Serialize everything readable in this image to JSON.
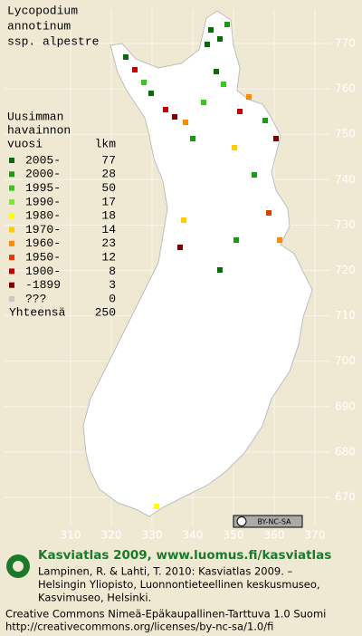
{
  "title_lines": [
    "Lycopodium",
    "annotinum",
    "ssp. alpestre"
  ],
  "map": {
    "xticks": [
      310,
      320,
      330,
      340,
      350,
      360,
      370
    ],
    "yticks": [
      670,
      680,
      690,
      700,
      710,
      720,
      730,
      740,
      750,
      760,
      770
    ]
  },
  "legend": {
    "title_lines": [
      "Uusimman",
      "havainnon",
      "vuosi"
    ],
    "count_header": "lkm",
    "items": [
      {
        "label": "2005-",
        "count": 77,
        "color": "#0a6a0a"
      },
      {
        "label": "2000-",
        "count": 28,
        "color": "#1c9a14"
      },
      {
        "label": "1995-",
        "count": 50,
        "color": "#34c81c"
      },
      {
        "label": "1990-",
        "count": 17,
        "color": "#7ee83a"
      },
      {
        "label": "1980-",
        "count": 18,
        "color": "#ffff00"
      },
      {
        "label": "1970-",
        "count": 14,
        "color": "#ffcc00"
      },
      {
        "label": "1960-",
        "count": 23,
        "color": "#ff8a00"
      },
      {
        "label": "1950-",
        "count": 12,
        "color": "#e83a00"
      },
      {
        "label": "1900-",
        "count": 8,
        "color": "#c00000"
      },
      {
        "label": "-1899",
        "count": 3,
        "color": "#800000"
      },
      {
        "label": "???",
        "count": 0,
        "color": "#c8c8c8"
      }
    ],
    "total_label": "Yhteensä",
    "total": 250
  },
  "badge": "BY-NC-SA",
  "footer": {
    "heading": "Kasviatlas 2009, www.luomus.fi/kasviatlas",
    "citation_lines": [
      "Lampinen, R. & Lahti, T. 2010: Kasviatlas 2009. –",
      "Helsingin Yliopisto, Luonnontieteellinen keskusmuseo,",
      "Kasvimuseo, Helsinki."
    ],
    "license_lines": [
      "Creative Commons Nimeä-Epäkaupallinen-Tarttuva 1.0 Suomi",
      "http://creativecommons.org/licenses/by-nc-sa/1.0/fi"
    ]
  }
}
